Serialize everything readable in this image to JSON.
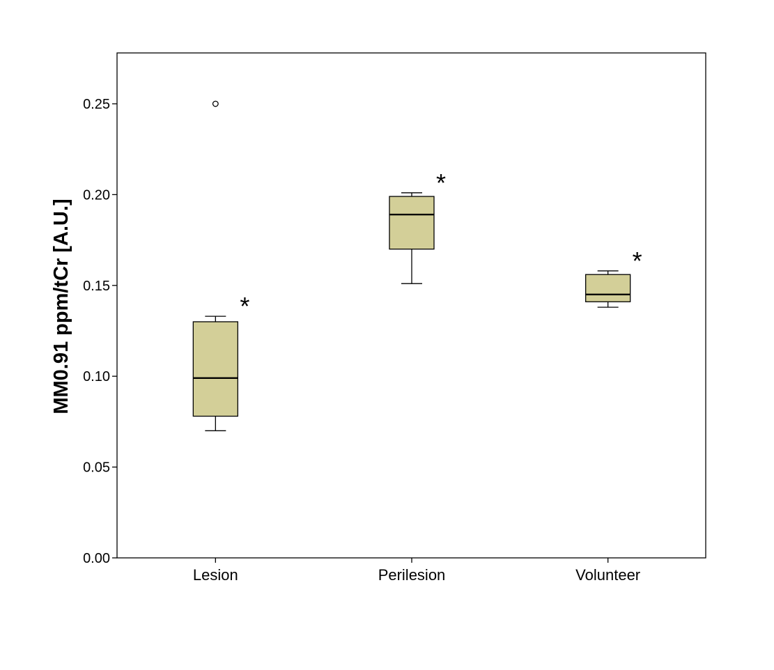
{
  "chart_data": {
    "type": "box",
    "title": "",
    "xlabel": "",
    "ylabel": "MM0.91 ppm/tCr [A.U.]",
    "ylim": [
      0,
      0.278
    ],
    "yticks": [
      {
        "value": 0.0,
        "label": "0.00"
      },
      {
        "value": 0.05,
        "label": "0.05"
      },
      {
        "value": 0.1,
        "label": "0.10"
      },
      {
        "value": 0.15,
        "label": "0.15"
      },
      {
        "value": 0.2,
        "label": "0.20"
      },
      {
        "value": 0.25,
        "label": "0.25"
      }
    ],
    "grid": false,
    "legend": "none",
    "box_color": "#d3cf98",
    "categories": [
      "Lesion",
      "Perilesion",
      "Volunteer"
    ],
    "boxes": [
      {
        "category": "Lesion",
        "whisker_low": 0.07,
        "q1": 0.078,
        "median": 0.099,
        "q3": 0.13,
        "whisker_high": 0.133,
        "outliers": [
          0.25
        ],
        "marker": "*"
      },
      {
        "category": "Perilesion",
        "whisker_low": 0.151,
        "q1": 0.17,
        "median": 0.189,
        "q3": 0.199,
        "whisker_high": 0.201,
        "outliers": [],
        "marker": "*"
      },
      {
        "category": "Volunteer",
        "whisker_low": 0.138,
        "q1": 0.141,
        "median": 0.145,
        "q3": 0.156,
        "whisker_high": 0.158,
        "outliers": [],
        "marker": "*"
      }
    ]
  }
}
